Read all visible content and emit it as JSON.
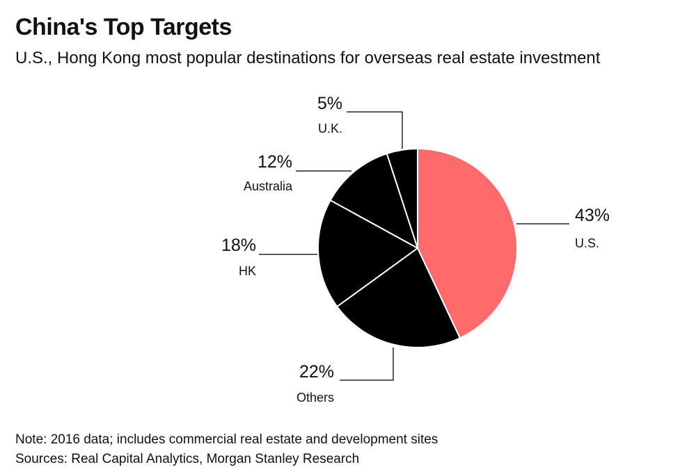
{
  "header": {
    "title": "China's Top Targets",
    "subtitle": "U.S., Hong Kong most popular destinations for overseas real estate investment"
  },
  "footer": {
    "note": "Note: 2016 data; includes commercial real estate and development sites",
    "sources": "Sources: Real Capital Analytics, Morgan Stanley Research"
  },
  "chart_data": {
    "type": "pie",
    "title": "China's Top Targets",
    "subtitle": "U.S., Hong Kong most popular destinations for overseas real estate investment",
    "unit": "%",
    "slices": [
      {
        "label": "U.S.",
        "value": 43,
        "value_label": "43%",
        "color": "#ff6b6b"
      },
      {
        "label": "Others",
        "value": 22,
        "value_label": "22%",
        "color": "#000000"
      },
      {
        "label": "HK",
        "value": 18,
        "value_label": "18%",
        "color": "#000000"
      },
      {
        "label": "Australia",
        "value": 12,
        "value_label": "12%",
        "color": "#000000"
      },
      {
        "label": "U.K.",
        "value": 5,
        "value_label": "5%",
        "color": "#000000"
      }
    ],
    "start_angle": "12 o'clock",
    "direction": "clockwise",
    "slice_border_color": "#ffffff",
    "label_style": "leader-lines"
  }
}
